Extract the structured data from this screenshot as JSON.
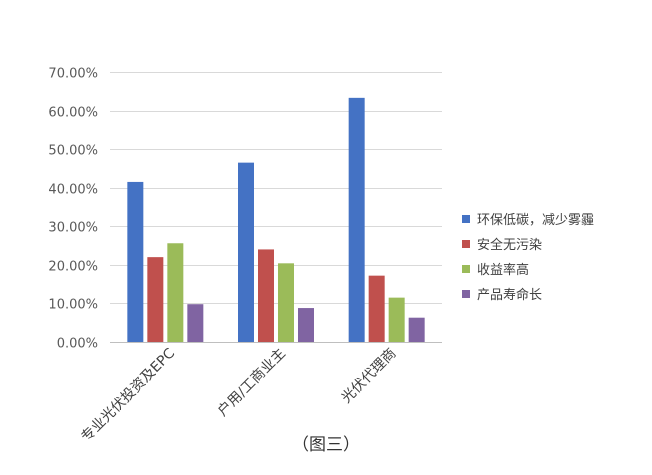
{
  "chart_data": {
    "type": "bar",
    "categories": [
      "专业光伏投资及EPC",
      "户用/工商业主",
      "光伏代理商"
    ],
    "series": [
      {
        "name": "环保低碳，减少雾霾",
        "color": "#4472c4",
        "values": [
          41.5,
          46.5,
          63.3
        ]
      },
      {
        "name": "安全无污染",
        "color": "#c0504d",
        "values": [
          22.0,
          24.0,
          17.2
        ]
      },
      {
        "name": "收益率高",
        "color": "#9bbb59",
        "values": [
          25.6,
          20.4,
          11.5
        ]
      },
      {
        "name": "产品寿命长",
        "color": "#8064a2",
        "values": [
          9.8,
          8.8,
          6.3
        ]
      }
    ],
    "ylim": [
      0,
      70
    ],
    "yticks": [
      "0.00%",
      "10.00%",
      "20.00%",
      "30.00%",
      "40.00%",
      "50.00%",
      "60.00%",
      "70.00%"
    ],
    "grid": true,
    "legend": "right"
  },
  "caption": "（图三）"
}
